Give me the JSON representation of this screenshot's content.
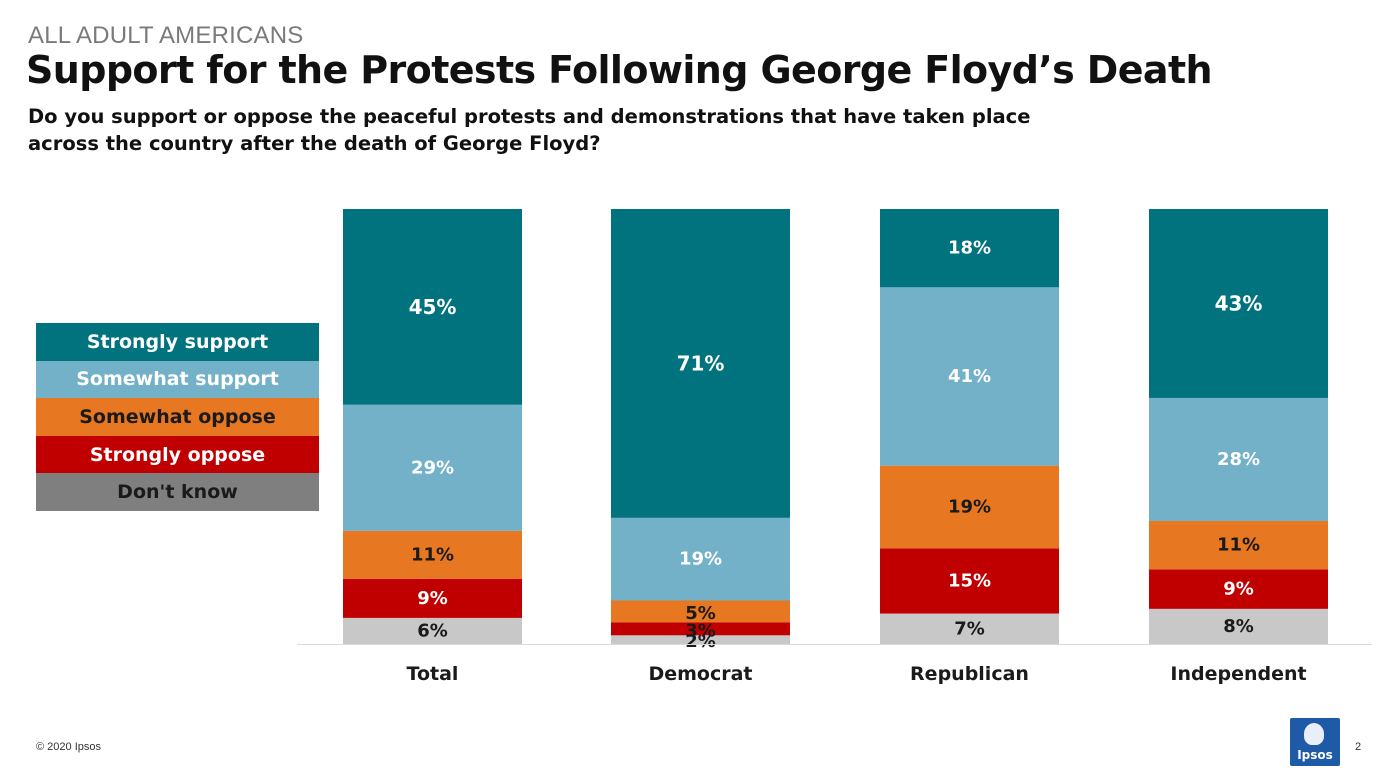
{
  "header": {
    "eyebrow": "ALL ADULT AMERICANS",
    "title": "Support for the Protests Following George Floyd’s Death",
    "question": "Do you support or oppose the peaceful protests and demonstrations that have taken place across the country after the death of George Floyd?"
  },
  "legend": [
    {
      "label": "Strongly support",
      "color": "#00737e",
      "text_color": "#ffffff"
    },
    {
      "label": "Somewhat support",
      "color": "#72b1c8",
      "text_color": "#ffffff"
    },
    {
      "label": "Somewhat oppose",
      "color": "#e87722",
      "text_color": "#1a1a1a"
    },
    {
      "label": "Strongly oppose",
      "color": "#c00000",
      "text_color": "#ffffff"
    },
    {
      "label": "Don't know",
      "color": "#7f7f7f",
      "text_color": "#1a1a1a"
    }
  ],
  "chart_data": {
    "type": "bar",
    "stacked": true,
    "categories": [
      "Total",
      "Democrat",
      "Republican",
      "Independent"
    ],
    "series": [
      {
        "name": "Don't know",
        "color": "#c8c8c8",
        "label_color": "#1a1a1a",
        "values": [
          6,
          2,
          7,
          8
        ]
      },
      {
        "name": "Strongly oppose",
        "color": "#c00000",
        "label_color": "#ffffff",
        "values": [
          9,
          3,
          15,
          9
        ]
      },
      {
        "name": "Somewhat oppose",
        "color": "#e87722",
        "label_color": "#1a1a1a",
        "values": [
          11,
          5,
          19,
          11
        ]
      },
      {
        "name": "Somewhat support",
        "color": "#72b1c8",
        "label_color": "#ffffff",
        "values": [
          29,
          19,
          41,
          28
        ]
      },
      {
        "name": "Strongly support",
        "color": "#00737e",
        "label_color": "#ffffff",
        "values": [
          45,
          71,
          18,
          43
        ]
      }
    ],
    "value_suffix": "%",
    "legend_position": "left",
    "grid": false
  },
  "footer": {
    "copyright": "© 2020 Ipsos",
    "page_number": "2",
    "logo_text": "Ipsos"
  }
}
